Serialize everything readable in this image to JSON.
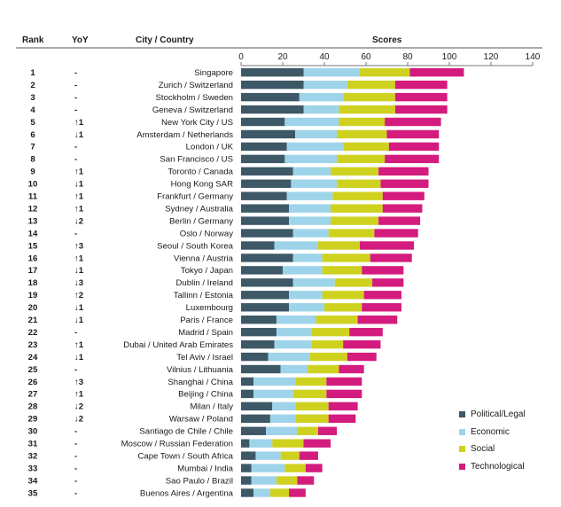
{
  "headers": {
    "rank": "Rank",
    "yoy": "YoY",
    "city": "City / Country",
    "scores": "Scores"
  },
  "chart_data": {
    "type": "bar",
    "orientation": "horizontal",
    "stacked": true,
    "xlim": [
      0,
      140
    ],
    "xticks": [
      0,
      20,
      40,
      60,
      80,
      100,
      120,
      140
    ],
    "xtick_labels": [
      "0",
      "20",
      "40",
      "60",
      "80",
      "100",
      "120",
      "140"
    ],
    "categories": [
      "Singapore",
      "Zurich / Switzerland",
      "Stockholm / Sweden",
      "Geneva / Switzerland",
      "New York City / US",
      "Amsterdam / Netherlands",
      "London / UK",
      "San Francisco / US",
      "Toronto / Canada",
      "Hong Kong SAR",
      "Frankfurt / Germany",
      "Sydney / Australia",
      "Berlin / Germany",
      "Oslo / Norway",
      "Seoul / South Korea",
      "Vienna / Austria",
      "Tokyo / Japan",
      "Dublin / Ireland",
      "Tallinn / Estonia",
      "Luxembourg",
      "Paris / France",
      "Madrid / Spain",
      "Dubai / United Arab Emirates",
      "Tel Aviv / Israel",
      "Vilnius / Lithuania",
      "Shanghai / China",
      "Beijing / China",
      "Milan / Italy",
      "Warsaw / Poland",
      "Santiago de Chile / Chile",
      "Moscow / Russian Federation",
      "Cape Town / South Africa",
      "Mumbai / India",
      "Sao Paulo / Brazil",
      "Buenos Aires / Argentina"
    ],
    "ranks": [
      "1",
      "2",
      "3",
      "4",
      "5",
      "6",
      "7",
      "8",
      "9",
      "10",
      "11",
      "12",
      "13",
      "14",
      "15",
      "16",
      "17",
      "18",
      "19",
      "20",
      "21",
      "22",
      "23",
      "24",
      "25",
      "26",
      "27",
      "28",
      "29",
      "30",
      "31",
      "32",
      "33",
      "34",
      "35"
    ],
    "yoy": [
      "-",
      "-",
      "-",
      "-",
      "↑1",
      "↓1",
      "-",
      "-",
      "↑1",
      "↓1",
      "↑1",
      "↑1",
      "↓2",
      "-",
      "↑3",
      "↑1",
      "↓1",
      "↓3",
      "↑2",
      "↓1",
      "↓1",
      "-",
      "↑1",
      "↓1",
      "-",
      "↑3",
      "↑1",
      "↓2",
      "↓2",
      "-",
      "-",
      "-",
      "-",
      "-",
      "-"
    ],
    "series": [
      {
        "name": "Political/Legal",
        "color": "#3d5866",
        "values": [
          30,
          30,
          28,
          30,
          21,
          26,
          22,
          21,
          25,
          24,
          22,
          23,
          23,
          25,
          16,
          25,
          20,
          25,
          23,
          23,
          17,
          17,
          16,
          13,
          19,
          6,
          6,
          15,
          14,
          12,
          4,
          7,
          5,
          5,
          6
        ]
      },
      {
        "name": "Economic",
        "color": "#9ed4ea",
        "values": [
          27,
          21,
          21,
          17,
          26,
          20,
          27,
          25,
          18,
          22,
          22,
          20,
          20,
          17,
          21,
          14,
          19,
          20,
          16,
          17,
          19,
          17,
          18,
          20,
          13,
          20,
          19,
          11,
          12,
          15,
          11,
          12,
          16,
          12,
          8
        ]
      },
      {
        "name": "Social",
        "color": "#cfd11f",
        "values": [
          24,
          23,
          25,
          27,
          22,
          24,
          22,
          23,
          23,
          21,
          24,
          25,
          23,
          22,
          20,
          23,
          19,
          18,
          20,
          18,
          20,
          18,
          15,
          18,
          15,
          15,
          16,
          16,
          16,
          10,
          15,
          9,
          10,
          10,
          9
        ]
      },
      {
        "name": "Technological",
        "color": "#d41b7e",
        "values": [
          26,
          25,
          25,
          25,
          27,
          25,
          24,
          26,
          24,
          23,
          20,
          19,
          20,
          21,
          26,
          20,
          20,
          15,
          18,
          19,
          19,
          16,
          18,
          14,
          12,
          17,
          17,
          14,
          13,
          9,
          13,
          9,
          8,
          8,
          8
        ]
      }
    ]
  }
}
